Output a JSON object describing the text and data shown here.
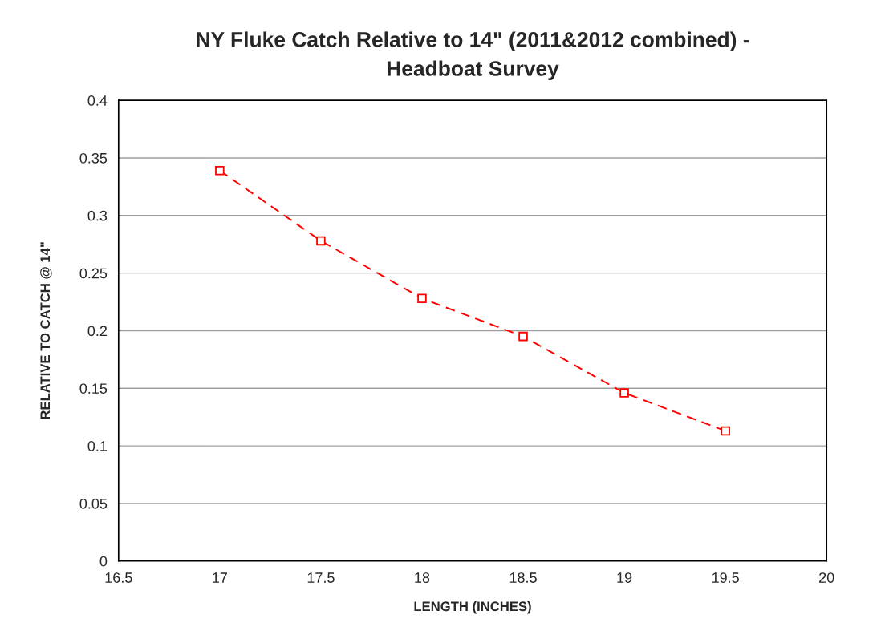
{
  "chart_data": {
    "type": "line",
    "title": "NY Fluke Catch Relative to 14\" (2011&2012 combined) -\nHeadboat Survey",
    "xlabel": "LENGTH (INCHES)",
    "ylabel": "RELATIVE TO CATCH @ 14\"",
    "x": [
      17,
      17.5,
      18,
      18.5,
      19,
      19.5
    ],
    "series": [
      {
        "color": "#ff0000",
        "values": [
          0.339,
          0.278,
          0.228,
          0.195,
          0.146,
          0.113
        ]
      }
    ],
    "xlim": [
      16.5,
      20
    ],
    "xticks": [
      16.5,
      17,
      17.5,
      18,
      18.5,
      19,
      19.5,
      20
    ],
    "ylim": [
      0,
      0.4
    ],
    "yticks": [
      0,
      0.05,
      0.1,
      0.15,
      0.2,
      0.25,
      0.3,
      0.35,
      0.4
    ],
    "grid": "y",
    "marker": "square",
    "line_style": "dashed"
  }
}
